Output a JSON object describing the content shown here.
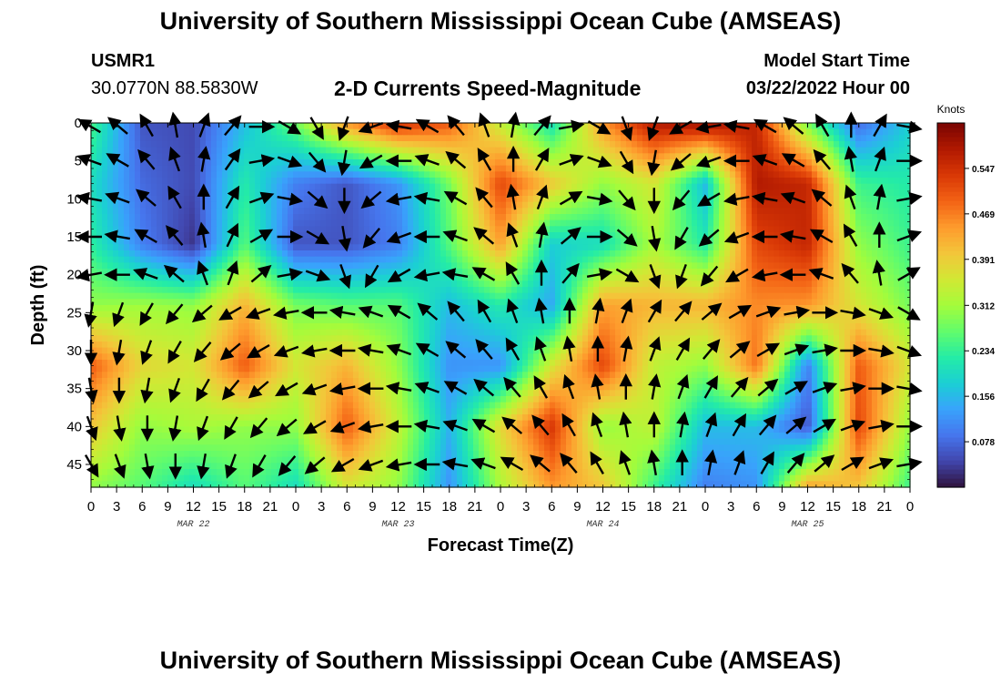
{
  "header": {
    "title": "University of Southern Mississippi Ocean Cube (AMSEAS)",
    "station": "USMR1",
    "coords": "30.0770N  88.5830W",
    "model_start_label": "Model Start Time",
    "model_start_value": "03/22/2022 Hour 00",
    "footer_title": "University of Southern Mississippi Ocean Cube (AMSEAS)"
  },
  "colors": {
    "arrow": "#000000",
    "colormap": [
      "#30123b",
      "#4145ab",
      "#4675ed",
      "#39a2fc",
      "#1bcfd4",
      "#24eca6",
      "#61fc6c",
      "#a4fc3b",
      "#d1e834",
      "#f3c63a",
      "#fe9b2d",
      "#f36315",
      "#d93806",
      "#b11901",
      "#7a0402"
    ]
  },
  "chart_data": {
    "type": "heatmap",
    "title": "2-D Currents Speed-Magnitude",
    "xlabel": "Forecast Time(Z)",
    "ylabel": "Depth (ft)",
    "colorbar_label": "Knots",
    "colorbar_ticks": [
      "0.078",
      "0.156",
      "0.234",
      "0.312",
      "0.391",
      "0.469",
      "0.547"
    ],
    "color_range": [
      0,
      0.625
    ],
    "x_tick_labels": [
      "0",
      "3",
      "6",
      "9",
      "12",
      "15",
      "18",
      "21",
      "0",
      "3",
      "6",
      "9",
      "12",
      "15",
      "18",
      "21",
      "0",
      "3",
      "6",
      "9",
      "12",
      "15",
      "18",
      "21",
      "0",
      "3",
      "6",
      "9",
      "12",
      "15",
      "18",
      "21",
      "0"
    ],
    "x_range_hours": [
      0,
      96
    ],
    "day_labels": [
      {
        "label": "MAR 22",
        "hour": 12
      },
      {
        "label": "MAR 23",
        "hour": 36
      },
      {
        "label": "MAR 24",
        "hour": 60
      },
      {
        "label": "MAR 25",
        "hour": 84
      }
    ],
    "y_tick_labels": [
      "0",
      "5",
      "10",
      "15",
      "20",
      "25",
      "30",
      "35",
      "40",
      "45"
    ],
    "y_range_ft": [
      0,
      48
    ],
    "y_reversed": true,
    "speed_field": {
      "hours": [
        0,
        6,
        12,
        18,
        24,
        30,
        36,
        42,
        48,
        54,
        60,
        66,
        72,
        78,
        84,
        90,
        96
      ],
      "depths": [
        0,
        8,
        16,
        24,
        32,
        40,
        48
      ],
      "values": [
        [
          0.25,
          0.06,
          0.05,
          0.16,
          0.28,
          0.45,
          0.55,
          0.5,
          0.34,
          0.2,
          0.45,
          0.58,
          0.6,
          0.56,
          0.28,
          0.08,
          0.18
        ],
        [
          0.2,
          0.08,
          0.05,
          0.22,
          0.1,
          0.06,
          0.12,
          0.28,
          0.52,
          0.4,
          0.3,
          0.36,
          0.16,
          0.58,
          0.56,
          0.24,
          0.22
        ],
        [
          0.23,
          0.1,
          0.03,
          0.26,
          0.06,
          0.06,
          0.1,
          0.26,
          0.44,
          0.18,
          0.2,
          0.32,
          0.22,
          0.52,
          0.56,
          0.3,
          0.24
        ],
        [
          0.3,
          0.31,
          0.3,
          0.42,
          0.28,
          0.26,
          0.26,
          0.16,
          0.22,
          0.14,
          0.44,
          0.42,
          0.42,
          0.46,
          0.45,
          0.36,
          0.28
        ],
        [
          0.5,
          0.38,
          0.36,
          0.5,
          0.36,
          0.42,
          0.3,
          0.12,
          0.12,
          0.36,
          0.52,
          0.34,
          0.3,
          0.48,
          0.1,
          0.5,
          0.36
        ],
        [
          0.4,
          0.3,
          0.32,
          0.3,
          0.3,
          0.5,
          0.34,
          0.15,
          0.38,
          0.54,
          0.3,
          0.34,
          0.16,
          0.16,
          0.06,
          0.52,
          0.3
        ],
        [
          0.3,
          0.26,
          0.2,
          0.26,
          0.2,
          0.36,
          0.3,
          0.12,
          0.32,
          0.45,
          0.4,
          0.24,
          0.1,
          0.12,
          0.44,
          0.4,
          0.24
        ]
      ]
    },
    "vector_grid": {
      "hours": [
        0,
        3.3,
        6.6,
        9.9,
        13.2,
        16.5,
        19.8,
        23.1,
        26.4,
        29.7,
        33.0,
        36.3,
        39.6,
        42.9,
        46.2,
        49.5,
        52.8,
        56.1,
        59.4,
        62.7,
        66.0,
        69.3,
        72.6,
        75.9,
        79.2,
        82.5,
        85.8,
        89.1,
        92.4,
        95.7
      ],
      "depths": [
        0.5,
        5,
        10,
        15,
        20,
        25,
        30,
        35,
        40,
        45
      ],
      "directions_deg": [
        [
          300,
          310,
          330,
          350,
          20,
          40,
          90,
          120,
          150,
          200,
          250,
          280,
          300,
          320,
          340,
          10,
          40,
          80,
          120,
          160,
          200,
          240,
          260,
          280,
          300,
          310,
          330,
          0,
          30,
          100
        ],
        [
          290,
          300,
          320,
          340,
          10,
          35,
          80,
          110,
          140,
          190,
          240,
          270,
          290,
          310,
          330,
          0,
          30,
          70,
          110,
          150,
          190,
          230,
          250,
          270,
          290,
          300,
          320,
          350,
          20,
          90
        ],
        [
          280,
          290,
          310,
          330,
          0,
          30,
          70,
          100,
          130,
          180,
          230,
          260,
          280,
          300,
          320,
          350,
          20,
          60,
          100,
          140,
          180,
          220,
          240,
          260,
          280,
          290,
          310,
          340,
          10,
          80
        ],
        [
          270,
          280,
          300,
          320,
          350,
          25,
          60,
          90,
          120,
          170,
          220,
          250,
          270,
          290,
          310,
          340,
          10,
          50,
          90,
          130,
          170,
          210,
          230,
          250,
          270,
          280,
          300,
          330,
          0,
          70
        ],
        [
          260,
          270,
          290,
          310,
          340,
          20,
          50,
          80,
          110,
          160,
          210,
          240,
          260,
          280,
          300,
          330,
          0,
          40,
          80,
          120,
          160,
          200,
          220,
          240,
          260,
          270,
          290,
          320,
          350,
          60
        ],
        [
          190,
          200,
          210,
          220,
          230,
          240,
          250,
          260,
          270,
          280,
          290,
          300,
          310,
          320,
          330,
          340,
          350,
          0,
          10,
          20,
          30,
          40,
          50,
          60,
          70,
          80,
          90,
          100,
          110,
          120
        ],
        [
          180,
          190,
          200,
          210,
          220,
          230,
          240,
          250,
          260,
          270,
          280,
          290,
          300,
          310,
          320,
          330,
          340,
          350,
          0,
          10,
          20,
          30,
          40,
          50,
          60,
          70,
          80,
          90,
          100,
          110
        ],
        [
          170,
          180,
          190,
          200,
          210,
          220,
          230,
          240,
          250,
          260,
          270,
          280,
          290,
          300,
          310,
          320,
          330,
          340,
          350,
          0,
          10,
          20,
          30,
          40,
          50,
          60,
          70,
          80,
          90,
          100
        ],
        [
          160,
          170,
          180,
          190,
          200,
          210,
          220,
          230,
          240,
          250,
          260,
          270,
          280,
          290,
          300,
          310,
          320,
          330,
          340,
          350,
          0,
          10,
          20,
          30,
          40,
          50,
          60,
          70,
          80,
          90
        ],
        [
          150,
          160,
          170,
          180,
          190,
          200,
          210,
          220,
          230,
          240,
          250,
          260,
          270,
          280,
          290,
          300,
          310,
          320,
          330,
          340,
          350,
          0,
          10,
          20,
          30,
          40,
          50,
          60,
          70,
          80
        ]
      ]
    }
  }
}
